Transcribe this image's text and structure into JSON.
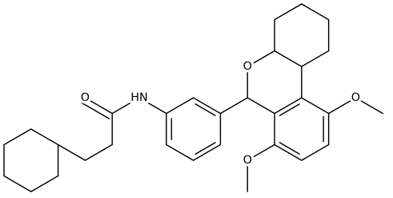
{
  "atoms": [
    {
      "label": "O"
    },
    {
      "label": "HN"
    },
    {
      "label": "O"
    },
    {
      "label": "O"
    },
    {
      "label": "O"
    }
  ]
}
